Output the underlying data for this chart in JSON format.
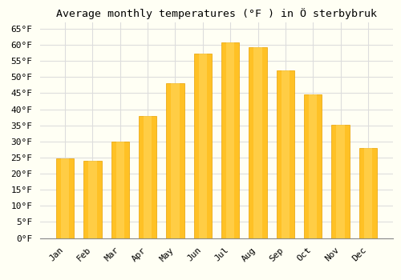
{
  "title": "Average monthly temperatures (°F ) in Ö sterbybruk",
  "months": [
    "Jan",
    "Feb",
    "Mar",
    "Apr",
    "May",
    "Jun",
    "Jul",
    "Aug",
    "Sep",
    "Oct",
    "Nov",
    "Dec"
  ],
  "values": [
    24.8,
    23.9,
    30.0,
    37.9,
    48.2,
    57.2,
    60.8,
    59.2,
    52.0,
    44.6,
    35.1,
    28.0
  ],
  "bar_color": "#FFC125",
  "bar_edge_color": "#E8A000",
  "background_color": "#FFFFF4",
  "grid_color": "#DDDDDD",
  "ylim": [
    0,
    67
  ],
  "yticks": [
    0,
    5,
    10,
    15,
    20,
    25,
    30,
    35,
    40,
    45,
    50,
    55,
    60,
    65
  ],
  "title_fontsize": 9.5,
  "tick_fontsize": 8,
  "font_family": "monospace"
}
